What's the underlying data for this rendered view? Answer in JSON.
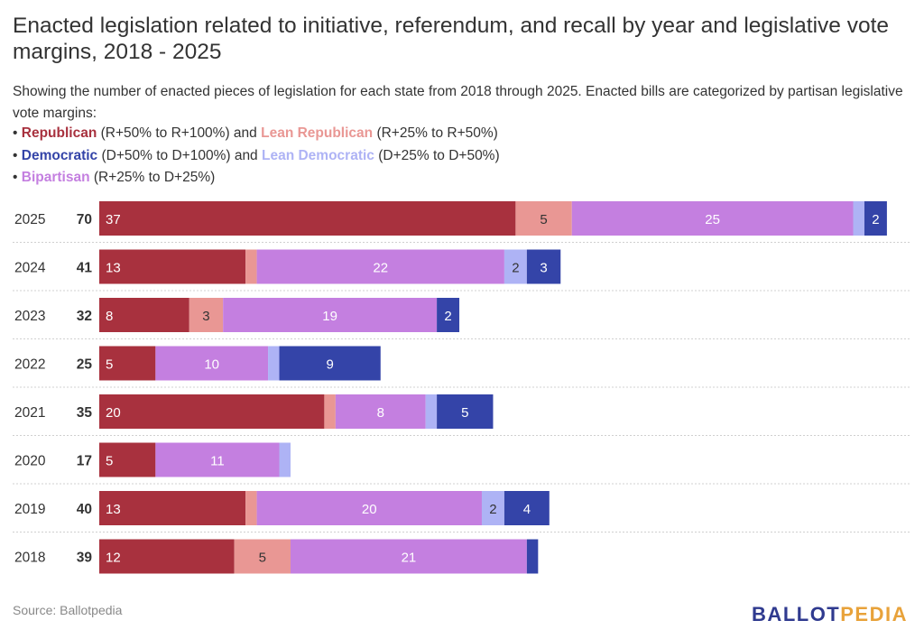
{
  "title": "Enacted legislation related to initiative, referendum, and recall by year and legislative vote margins, 2018 - 2025",
  "subtitle": "Showing the number of enacted pieces of legislation for each state from 2018 through 2025. Enacted bills are categorized by partisan legislative vote margins:",
  "legend": [
    {
      "bullet": "•",
      "k1": "Republican",
      "t1": " (R+50% to R+100%) and ",
      "k2": "Lean Republican",
      "t2": " (R+25% to R+50%)"
    },
    {
      "bullet": "•",
      "k1": "Democratic",
      "t1": " (D+50% to D+100%) and ",
      "k2": "Lean Democratic",
      "t2": " (D+25% to D+50%)"
    },
    {
      "bullet": "•",
      "k1": "Bipartisan",
      "t1": " (R+25% to D+25%)",
      "k2": "",
      "t2": ""
    }
  ],
  "colors": {
    "Republican": "#a8313e",
    "Lean Republican": "#e99794",
    "Bipartisan": "#c47fe0",
    "Lean Democratic": "#aeb3f5",
    "Democratic": "#3444a8"
  },
  "source": "Source: Ballotpedia",
  "logo": {
    "part1": "BALLOT",
    "part2": "PEDIA"
  },
  "chart_data": {
    "type": "bar",
    "orientation": "horizontal",
    "stacked": true,
    "categories": [
      "2025",
      "2024",
      "2023",
      "2022",
      "2021",
      "2020",
      "2019",
      "2018"
    ],
    "totals": [
      70,
      41,
      32,
      25,
      35,
      17,
      40,
      39
    ],
    "series": [
      {
        "name": "Republican",
        "values": [
          37,
          13,
          8,
          5,
          20,
          5,
          13,
          12
        ]
      },
      {
        "name": "Lean Republican",
        "values": [
          5,
          1,
          3,
          0,
          1,
          0,
          1,
          5
        ]
      },
      {
        "name": "Bipartisan",
        "values": [
          25,
          22,
          19,
          10,
          8,
          11,
          20,
          21
        ]
      },
      {
        "name": "Lean Democratic",
        "values": [
          1,
          2,
          0,
          1,
          1,
          1,
          2,
          0
        ]
      },
      {
        "name": "Democratic",
        "values": [
          2,
          3,
          2,
          9,
          5,
          0,
          4,
          1
        ]
      }
    ],
    "xlim": [
      0,
      70
    ],
    "grid": true,
    "legend_position": "top-left"
  }
}
